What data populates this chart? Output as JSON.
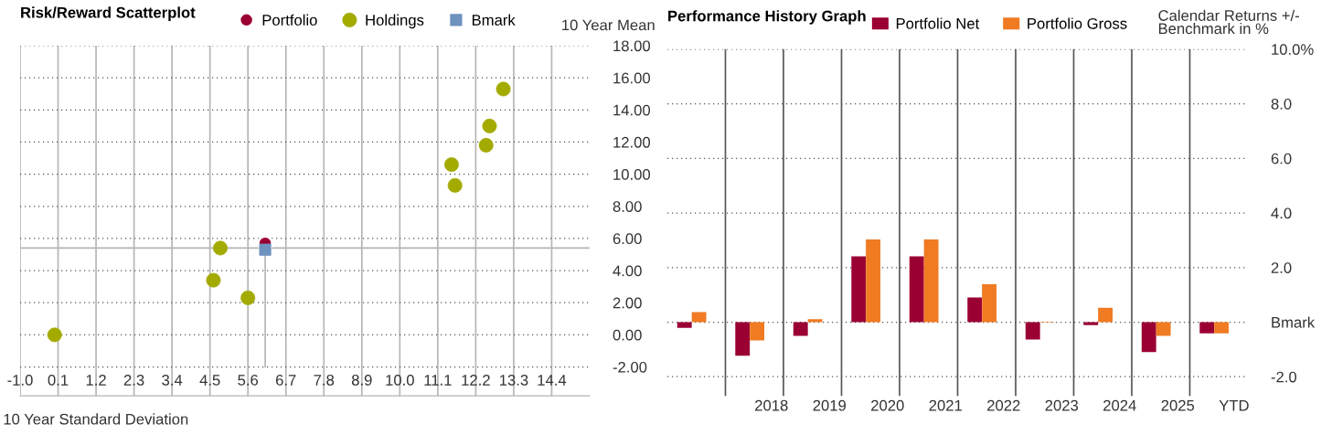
{
  "chart_data": [
    {
      "type": "scatter",
      "title": "Risk/Reward Scatterplot",
      "xlabel": "10 Year Standard Deviation",
      "ylabel": "10 Year Mean",
      "series": [
        {
          "name": "Portfolio",
          "color": "#9b0033",
          "marker": "circle",
          "x": [
            6.1
          ],
          "values": [
            5.7
          ]
        },
        {
          "name": "Holdings",
          "color": "#a3aa00",
          "marker": "circle",
          "x": [
            0.0,
            4.8,
            4.6,
            5.6,
            11.5,
            11.6,
            12.5,
            12.6,
            13.0
          ],
          "values": [
            0.0,
            5.4,
            3.4,
            2.3,
            10.6,
            9.3,
            11.8,
            13.0,
            15.3
          ]
        },
        {
          "name": "Bmark",
          "color": "#6f93bf",
          "marker": "square",
          "x": [
            6.1
          ],
          "values": [
            5.3
          ]
        }
      ],
      "ref_lines": [
        {
          "axis": "y",
          "value": 5.4,
          "color": "#b5b5b5"
        },
        {
          "axis": "x",
          "value": 6.1,
          "color": "#b5b5b5"
        }
      ],
      "xlim": [
        -1.0,
        15.5
      ],
      "xticks": [
        {
          "value": -1.0,
          "label": "-1.0"
        },
        0.1,
        1.2,
        2.3,
        3.4,
        4.5,
        5.6,
        6.7,
        7.8,
        8.9,
        {
          "value": 10.0,
          "label": "10.0"
        },
        11.1,
        12.2,
        13.3,
        14.4
      ],
      "ylim": [
        -3.8,
        18
      ],
      "yticks": [
        {
          "value": -2,
          "label": "-2.00"
        },
        {
          "value": 0,
          "label": "0.00"
        },
        {
          "value": 2,
          "label": "2.00"
        },
        {
          "value": 4,
          "label": "4.00"
        },
        {
          "value": 6,
          "label": "6.00"
        },
        {
          "value": 8,
          "label": "8.00"
        },
        {
          "value": 10,
          "label": "10.00"
        },
        {
          "value": 12,
          "label": "12.00"
        },
        {
          "value": 14,
          "label": "14.00"
        },
        {
          "value": 16,
          "label": "16.00"
        },
        {
          "value": 18,
          "label": "18.00"
        }
      ],
      "grid": true,
      "legend": "top"
    },
    {
      "type": "bar",
      "title": "Performance History Graph",
      "ylabel": "Calendar Returns +/-\nBenchmark in %",
      "categories": [
        null,
        "2018",
        "2019",
        "2020",
        "2021",
        "2022",
        "2023",
        "2024",
        "2025",
        "YTD"
      ],
      "series": [
        {
          "name": "Portfolio Net",
          "color": "#9b0033",
          "values": [
            -0.21,
            -1.23,
            -0.5,
            2.41,
            2.41,
            0.9,
            -0.64,
            -0.11,
            -1.1,
            -0.41
          ]
        },
        {
          "name": "Portfolio Gross",
          "color": "#f07b22",
          "values": [
            0.37,
            -0.67,
            0.11,
            3.03,
            3.03,
            1.39,
            0.02,
            0.53,
            -0.5,
            -0.41
          ]
        }
      ],
      "ylim": [
        -2.7,
        10
      ],
      "yticks": [
        {
          "value": -2,
          "label": "-2.0"
        },
        {
          "value": 0,
          "label": "Bmark"
        },
        {
          "value": 2,
          "label": "2.0"
        },
        {
          "value": 4,
          "label": "4.0"
        },
        {
          "value": 6,
          "label": "6.0"
        },
        {
          "value": 8,
          "label": "8.0"
        },
        {
          "value": 10,
          "label": "10.0%"
        }
      ],
      "grid": "y",
      "legend": "top"
    }
  ]
}
